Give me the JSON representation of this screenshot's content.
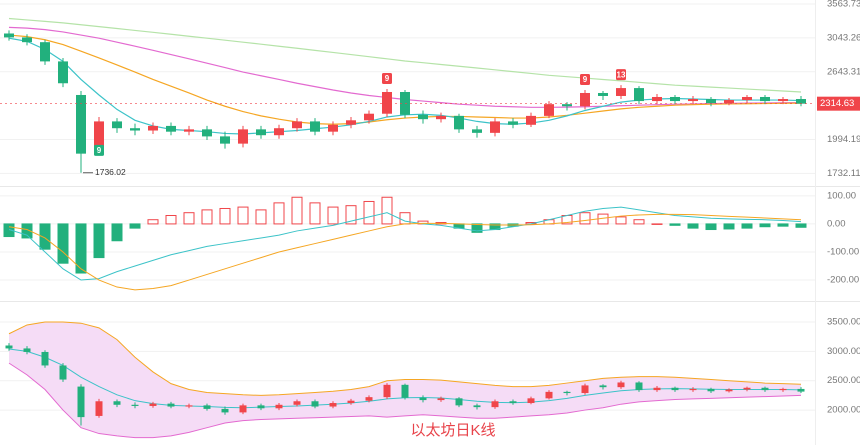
{
  "chart_data": [
    {
      "type": "candlestick",
      "log_scale": true,
      "up_color": "#f0454a",
      "down_color": "#22b07d",
      "ylim": [
        1650,
        3563.73
      ],
      "yticks": [
        3563.73,
        3043.26,
        2643.31,
        1994.19,
        1732.11
      ],
      "open": [
        3100,
        3050,
        2990,
        2760,
        2400,
        1900,
        2150,
        2090,
        2070,
        2110,
        2060,
        2080,
        2020,
        1960,
        2080,
        2030,
        2090,
        2150,
        2060,
        2120,
        2160,
        2220,
        2430,
        2210,
        2170,
        2200,
        2080,
        2050,
        2150,
        2120,
        2200,
        2310,
        2290,
        2420,
        2390,
        2470,
        2340,
        2380,
        2340,
        2360,
        2320,
        2350,
        2380,
        2340,
        2360
      ],
      "high": [
        3140,
        3090,
        3020,
        2800,
        2440,
        2190,
        2180,
        2130,
        2140,
        2140,
        2110,
        2110,
        2060,
        2110,
        2110,
        2120,
        2180,
        2180,
        2150,
        2190,
        2250,
        2460,
        2450,
        2250,
        2230,
        2220,
        2110,
        2180,
        2180,
        2230,
        2340,
        2330,
        2450,
        2440,
        2500,
        2490,
        2410,
        2400,
        2390,
        2380,
        2370,
        2400,
        2400,
        2380,
        2390
      ],
      "low": [
        3010,
        2950,
        2720,
        2480,
        1736.02,
        1870,
        2050,
        2030,
        2040,
        2030,
        2030,
        1990,
        1920,
        1930,
        2000,
        2000,
        2060,
        2030,
        2030,
        2090,
        2130,
        2190,
        2180,
        2130,
        2140,
        2050,
        2010,
        2020,
        2090,
        2100,
        2180,
        2250,
        2260,
        2350,
        2360,
        2310,
        2310,
        2310,
        2310,
        2290,
        2300,
        2320,
        2310,
        2310,
        2290
      ],
      "close": [
        3050,
        2990,
        2760,
        2520,
        1880,
        2150,
        2090,
        2070,
        2110,
        2060,
        2080,
        2020,
        1960,
        2080,
        2030,
        2090,
        2150,
        2060,
        2120,
        2160,
        2220,
        2430,
        2210,
        2170,
        2200,
        2080,
        2050,
        2150,
        2120,
        2200,
        2310,
        2290,
        2420,
        2390,
        2470,
        2340,
        2380,
        2340,
        2360,
        2320,
        2350,
        2380,
        2340,
        2360,
        2314.63
      ],
      "series": [
        {
          "color": "#b5e3a8",
          "values": [
            3300,
            3280,
            3260,
            3240,
            3215,
            3190,
            3165,
            3140,
            3115,
            3090,
            3065,
            3040,
            3015,
            2990,
            2965,
            2940,
            2915,
            2890,
            2865,
            2840,
            2815,
            2790,
            2765,
            2745,
            2725,
            2705,
            2685,
            2665,
            2645,
            2625,
            2605,
            2590,
            2575,
            2560,
            2545,
            2530,
            2515,
            2500,
            2490,
            2480,
            2470,
            2460,
            2450,
            2440,
            2430
          ]
        },
        {
          "color": "#e36ad0",
          "values": [
            3180,
            3170,
            3150,
            3120,
            3080,
            3040,
            2990,
            2940,
            2890,
            2840,
            2790,
            2740,
            2690,
            2640,
            2600,
            2560,
            2520,
            2485,
            2450,
            2420,
            2395,
            2375,
            2355,
            2340,
            2325,
            2310,
            2300,
            2290,
            2285,
            2280,
            2280,
            2282,
            2285,
            2290,
            2295,
            2300,
            2305,
            2310,
            2312,
            2315,
            2318,
            2320,
            2322,
            2324,
            2325
          ]
        },
        {
          "color": "#f5a623",
          "values": [
            3080,
            3060,
            3020,
            2960,
            2880,
            2800,
            2720,
            2640,
            2560,
            2490,
            2420,
            2350,
            2290,
            2240,
            2200,
            2170,
            2145,
            2130,
            2125,
            2130,
            2145,
            2165,
            2180,
            2190,
            2195,
            2195,
            2190,
            2185,
            2180,
            2180,
            2190,
            2205,
            2225,
            2245,
            2265,
            2280,
            2290,
            2300,
            2305,
            2310,
            2312,
            2314,
            2316,
            2318,
            2320
          ]
        },
        {
          "color": "#3cc3c8",
          "values": [
            3040,
            3000,
            2900,
            2760,
            2560,
            2400,
            2260,
            2160,
            2110,
            2080,
            2070,
            2060,
            2045,
            2040,
            2050,
            2060,
            2070,
            2085,
            2100,
            2120,
            2150,
            2190,
            2210,
            2215,
            2205,
            2180,
            2150,
            2130,
            2125,
            2135,
            2160,
            2200,
            2250,
            2290,
            2330,
            2350,
            2360,
            2365,
            2360,
            2355,
            2350,
            2350,
            2350,
            2350,
            2345
          ]
        }
      ],
      "annotations": [
        {
          "text": "9",
          "color": "#22b07d"
        },
        {
          "text": "9",
          "color": "#f0454a"
        },
        {
          "text": "9",
          "color": "#f0454a"
        },
        {
          "text": "13",
          "color": "#f0454a"
        }
      ]
    },
    {
      "type": "macd",
      "up_color": "#f0454a",
      "down_color": "#22b07d",
      "ylim": [
        -264,
        128
      ],
      "yticks": [
        {
          "value": 100,
          "label": "100.00"
        },
        {
          "value": 0,
          "label": "0.00"
        },
        {
          "value": -100,
          "label": "-100.00"
        },
        {
          "value": -200,
          "label": "-200.00"
        }
      ],
      "histogram": [
        -45,
        -50,
        -90,
        -140,
        -175,
        -120,
        -60,
        -15,
        15,
        30,
        40,
        50,
        55,
        60,
        50,
        75,
        95,
        75,
        60,
        65,
        80,
        95,
        40,
        10,
        5,
        -15,
        -30,
        -20,
        -8,
        5,
        15,
        30,
        40,
        35,
        25,
        15,
        0,
        -5,
        -15,
        -20,
        -18,
        -15,
        -10,
        -8,
        -12
      ],
      "series": [
        {
          "color": "#3cc3c8",
          "values": [
            -20,
            -40,
            -100,
            -160,
            -200,
            -195,
            -170,
            -150,
            -130,
            -110,
            -95,
            -80,
            -70,
            -60,
            -50,
            -40,
            -25,
            -15,
            -5,
            10,
            25,
            40,
            10,
            0,
            -5,
            -15,
            -25,
            -20,
            -10,
            0,
            15,
            30,
            45,
            55,
            60,
            50,
            40,
            30,
            25,
            20,
            18,
            16,
            15,
            12,
            8
          ]
        },
        {
          "color": "#f5a623",
          "values": [
            -10,
            -20,
            -50,
            -100,
            -160,
            -200,
            -225,
            -235,
            -230,
            -220,
            -200,
            -180,
            -160,
            -140,
            -120,
            -100,
            -85,
            -70,
            -55,
            -40,
            -25,
            -10,
            0,
            2,
            2,
            0,
            -2,
            -4,
            -4,
            -3,
            0,
            5,
            12,
            20,
            28,
            32,
            34,
            34,
            33,
            30,
            27,
            24,
            21,
            18,
            15
          ]
        }
      ]
    },
    {
      "type": "bollinger",
      "fill": "#f5dcf6",
      "watermark": "以太坊日K线",
      "ylim": [
        1490,
        3790
      ],
      "yticks": [
        {
          "value": 3500,
          "label": "3500.00"
        },
        {
          "value": 3000,
          "label": "3000.00"
        },
        {
          "value": 2500,
          "label": "2500.00"
        },
        {
          "value": 2000,
          "label": "2000.00"
        }
      ],
      "series": [
        {
          "color": "#f5a623",
          "values": [
            3300,
            3450,
            3500,
            3500,
            3480,
            3400,
            3200,
            2900,
            2650,
            2450,
            2350,
            2300,
            2280,
            2260,
            2250,
            2260,
            2280,
            2300,
            2320,
            2350,
            2400,
            2500,
            2520,
            2520,
            2510,
            2480,
            2450,
            2420,
            2400,
            2400,
            2420,
            2460,
            2500,
            2540,
            2560,
            2570,
            2570,
            2560,
            2540,
            2520,
            2500,
            2480,
            2460,
            2450,
            2440
          ]
        },
        {
          "color": "#3cc3c8",
          "values": [
            3040,
            3000,
            2900,
            2760,
            2560,
            2400,
            2260,
            2160,
            2110,
            2080,
            2070,
            2060,
            2045,
            2040,
            2050,
            2060,
            2070,
            2085,
            2100,
            2120,
            2150,
            2190,
            2210,
            2215,
            2205,
            2180,
            2150,
            2130,
            2125,
            2135,
            2160,
            2200,
            2250,
            2290,
            2330,
            2350,
            2360,
            2365,
            2360,
            2355,
            2350,
            2350,
            2350,
            2350,
            2345
          ]
        },
        {
          "color": "#e36ad0",
          "values": [
            2800,
            2600,
            2350,
            2000,
            1700,
            1600,
            1560,
            1530,
            1530,
            1560,
            1620,
            1700,
            1780,
            1820,
            1840,
            1850,
            1860,
            1870,
            1880,
            1890,
            1900,
            1880,
            1900,
            1920,
            1900,
            1880,
            1860,
            1860,
            1880,
            1900,
            1920,
            1950,
            2000,
            2040,
            2100,
            2140,
            2160,
            2180,
            2190,
            2200,
            2210,
            2220,
            2230,
            2240,
            2250
          ]
        }
      ]
    }
  ]
}
